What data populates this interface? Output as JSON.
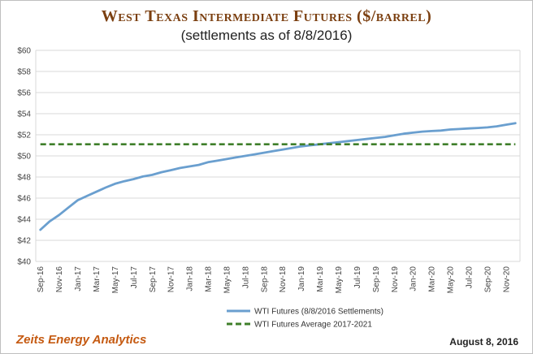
{
  "chart_data": {
    "type": "line",
    "title": "West Texas Intermediate Futures ($/barrel)",
    "subtitle": "(settlements as of 8/8/2016)",
    "xlabel": "",
    "ylabel": "",
    "ylim": [
      40,
      60
    ],
    "y_ticks": [
      "$40",
      "$42",
      "$44",
      "$46",
      "$48",
      "$50",
      "$52",
      "$54",
      "$56",
      "$58",
      "$60"
    ],
    "x_tick_labels": [
      "Sep-16",
      "Nov-16",
      "Jan-17",
      "Mar-17",
      "May-17",
      "Jul-17",
      "Sep-17",
      "Nov-17",
      "Jan-18",
      "Mar-18",
      "May-18",
      "Jul-18",
      "Sep-18",
      "Nov-18",
      "Jan-19",
      "Mar-19",
      "May-19",
      "Jul-19",
      "Sep-19",
      "Nov-19",
      "Jan-20",
      "Mar-20",
      "May-20",
      "Jul-20",
      "Sep-20",
      "Nov-20"
    ],
    "x": [
      "Sep-16",
      "Oct-16",
      "Nov-16",
      "Dec-16",
      "Jan-17",
      "Feb-17",
      "Mar-17",
      "Apr-17",
      "May-17",
      "Jun-17",
      "Jul-17",
      "Aug-17",
      "Sep-17",
      "Oct-17",
      "Nov-17",
      "Dec-17",
      "Jan-18",
      "Feb-18",
      "Mar-18",
      "Apr-18",
      "May-18",
      "Jun-18",
      "Jul-18",
      "Aug-18",
      "Sep-18",
      "Oct-18",
      "Nov-18",
      "Dec-18",
      "Jan-19",
      "Feb-19",
      "Mar-19",
      "Apr-19",
      "May-19",
      "Jun-19",
      "Jul-19",
      "Aug-19",
      "Sep-19",
      "Oct-19",
      "Nov-19",
      "Dec-19",
      "Jan-20",
      "Feb-20",
      "Mar-20",
      "Apr-20",
      "May-20",
      "Jun-20",
      "Jul-20",
      "Aug-20",
      "Sep-20",
      "Oct-20",
      "Nov-20",
      "Dec-20"
    ],
    "series": [
      {
        "name": "WTI Futures (8/8/2016 Settlements)",
        "color": "#6a9fcf",
        "style": "solid",
        "values": [
          43.0,
          43.8,
          44.4,
          45.1,
          45.8,
          46.2,
          46.6,
          47.0,
          47.35,
          47.6,
          47.8,
          48.05,
          48.2,
          48.45,
          48.65,
          48.85,
          49.0,
          49.15,
          49.4,
          49.55,
          49.7,
          49.85,
          50.0,
          50.15,
          50.3,
          50.45,
          50.6,
          50.75,
          50.9,
          51.0,
          51.1,
          51.2,
          51.3,
          51.4,
          51.5,
          51.6,
          51.7,
          51.8,
          51.95,
          52.1,
          52.2,
          52.3,
          52.35,
          52.4,
          52.5,
          52.55,
          52.6,
          52.65,
          52.7,
          52.8,
          52.95,
          53.1
        ]
      },
      {
        "name": "WTI Futures Average 2017-2021",
        "color": "#3f7f2a",
        "style": "dashed",
        "values": [
          51.1,
          51.1,
          51.1,
          51.1,
          51.1,
          51.1,
          51.1,
          51.1,
          51.1,
          51.1,
          51.1,
          51.1,
          51.1,
          51.1,
          51.1,
          51.1,
          51.1,
          51.1,
          51.1,
          51.1,
          51.1,
          51.1,
          51.1,
          51.1,
          51.1,
          51.1,
          51.1,
          51.1,
          51.1,
          51.1,
          51.1,
          51.1,
          51.1,
          51.1,
          51.1,
          51.1,
          51.1,
          51.1,
          51.1,
          51.1,
          51.1,
          51.1,
          51.1,
          51.1,
          51.1,
          51.1,
          51.1,
          51.1,
          51.1,
          51.1,
          51.1,
          51.1
        ]
      }
    ],
    "grid": true,
    "legend_position": "bottom"
  },
  "footer": {
    "source": "Zeits Energy Analytics",
    "date": "August 8, 2016"
  }
}
